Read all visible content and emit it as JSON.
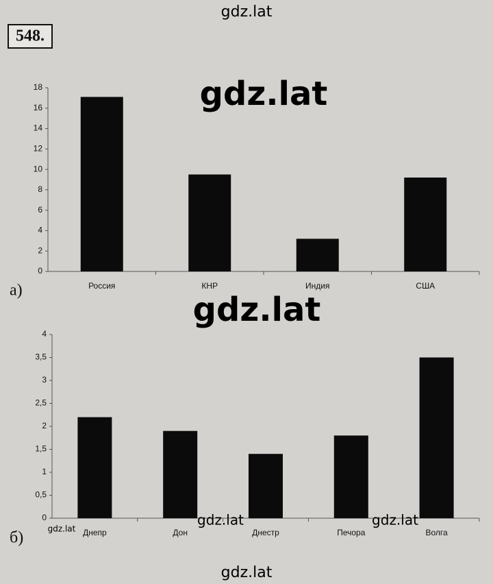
{
  "problem_number": "548.",
  "watermarks": [
    "gdz.lat",
    "gdz.lat",
    "gdz.lat",
    "gdz.lat",
    "gdz.lat",
    "gdz.lat",
    "gdz.lat"
  ],
  "chart_data": [
    {
      "type": "bar",
      "label": "а)",
      "categories": [
        "Россия",
        "КНР",
        "Индия",
        "США"
      ],
      "values": [
        17.1,
        9.5,
        3.2,
        9.2
      ],
      "color": "#0b0b0b",
      "ylim": [
        0,
        18
      ],
      "yticks": [
        0,
        2,
        4,
        6,
        8,
        10,
        12,
        14,
        16,
        18
      ],
      "grid": false
    },
    {
      "type": "bar",
      "label": "б)",
      "categories": [
        "Днепр",
        "Дон",
        "Днестр",
        "Печора",
        "Волга"
      ],
      "values": [
        2.2,
        1.9,
        1.4,
        1.8,
        3.5
      ],
      "color": "#0b0b0b",
      "ylim": [
        0,
        4
      ],
      "yticks": [
        0,
        {
          "value": 0.5,
          "label": "0,5"
        },
        1,
        {
          "value": 1.5,
          "label": "1,5"
        },
        2,
        {
          "value": 2.5,
          "label": "2,5"
        },
        3,
        {
          "value": 3.5,
          "label": "3,5"
        },
        4
      ],
      "grid": false
    }
  ]
}
